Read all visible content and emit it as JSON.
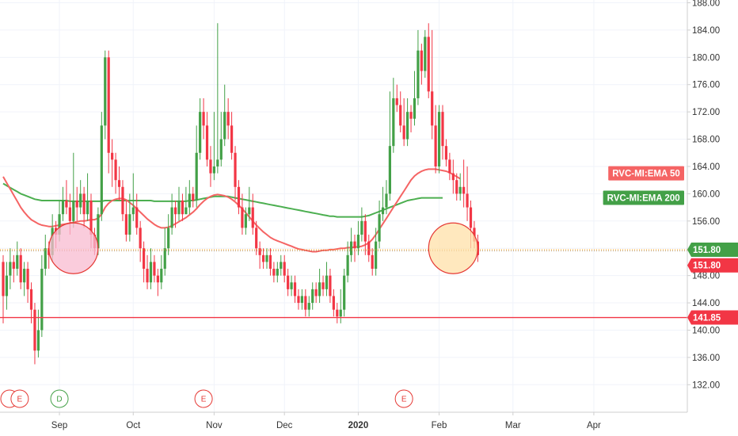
{
  "chart_data": {
    "type": "candlestick",
    "ylim": [
      130,
      188
    ],
    "y_ticks": [
      "132.00",
      "136.00",
      "140.00",
      "144.00",
      "148.00",
      "152.00",
      "156.00",
      "160.00",
      "164.00",
      "168.00",
      "172.00",
      "176.00",
      "180.00",
      "184.00",
      "188.00"
    ],
    "x_labels": [
      {
        "label": "Sep",
        "index": 16,
        "bold": false
      },
      {
        "label": "Oct",
        "index": 37,
        "bold": false
      },
      {
        "label": "Nov",
        "index": 60,
        "bold": false
      },
      {
        "label": "Dec",
        "index": 80,
        "bold": false
      },
      {
        "label": "2020",
        "index": 101,
        "bold": true
      },
      {
        "label": "Feb",
        "index": 124,
        "bold": false
      },
      {
        "label": "Mar",
        "index": 145,
        "bold": false
      },
      {
        "label": "Apr",
        "index": 168,
        "bold": false
      }
    ],
    "candles": [
      [
        150,
        145,
        151,
        141
      ],
      [
        145,
        148,
        150,
        143
      ],
      [
        148,
        150,
        152,
        146
      ],
      [
        150,
        149,
        151,
        147
      ],
      [
        149,
        151,
        153,
        148
      ],
      [
        151,
        147,
        152,
        146
      ],
      [
        147,
        149,
        150,
        145
      ],
      [
        149,
        146,
        150,
        144
      ],
      [
        146,
        143,
        147,
        141
      ],
      [
        143,
        137,
        144,
        135
      ],
      [
        137,
        140,
        143,
        136
      ],
      [
        140,
        149,
        151,
        139
      ],
      [
        149,
        152,
        154,
        148
      ],
      [
        152,
        151,
        153,
        149
      ],
      [
        151,
        155,
        157,
        150
      ],
      [
        155,
        154,
        156,
        152
      ],
      [
        154,
        157,
        159,
        153
      ],
      [
        157,
        159,
        161,
        156
      ],
      [
        159,
        158,
        162,
        157
      ],
      [
        158,
        156,
        160,
        154
      ],
      [
        156,
        159,
        166,
        155
      ],
      [
        159,
        158,
        161,
        156
      ],
      [
        158,
        160,
        162,
        157
      ],
      [
        160,
        157,
        161,
        155
      ],
      [
        157,
        159,
        163,
        156
      ],
      [
        159,
        154,
        160,
        152
      ],
      [
        154,
        152,
        155,
        151
      ],
      [
        152,
        157,
        158,
        151
      ],
      [
        157,
        170,
        172,
        156
      ],
      [
        170,
        180,
        181,
        168
      ],
      [
        180,
        166,
        181,
        163
      ],
      [
        166,
        165,
        168,
        161
      ],
      [
        165,
        162,
        166,
        160
      ],
      [
        162,
        161,
        164,
        159
      ],
      [
        161,
        157,
        162,
        156
      ],
      [
        157,
        154,
        159,
        153
      ],
      [
        154,
        157,
        160,
        153
      ],
      [
        157,
        158,
        163,
        156
      ],
      [
        158,
        155,
        160,
        154
      ],
      [
        155,
        152,
        156,
        150
      ],
      [
        152,
        149,
        153,
        147
      ],
      [
        149,
        147,
        151,
        146
      ],
      [
        147,
        150,
        152,
        146
      ],
      [
        150,
        148,
        151,
        147
      ],
      [
        148,
        147,
        149,
        145
      ],
      [
        147,
        149,
        151,
        146
      ],
      [
        149,
        152,
        155,
        148
      ],
      [
        152,
        155,
        157,
        151
      ],
      [
        155,
        158,
        160,
        154
      ],
      [
        158,
        157,
        159,
        155
      ],
      [
        157,
        159,
        161,
        156
      ],
      [
        159,
        157,
        160,
        156
      ],
      [
        157,
        158,
        161,
        157
      ],
      [
        158,
        160,
        162,
        157
      ],
      [
        160,
        159,
        161,
        158
      ],
      [
        159,
        166,
        170,
        158
      ],
      [
        166,
        172,
        174,
        165
      ],
      [
        172,
        170,
        174,
        168
      ],
      [
        170,
        165,
        172,
        164
      ],
      [
        165,
        163,
        167,
        161
      ],
      [
        163,
        164,
        172,
        162
      ],
      [
        164,
        165,
        185,
        163
      ],
      [
        165,
        168,
        172,
        164
      ],
      [
        168,
        172,
        176,
        167
      ],
      [
        172,
        170,
        174,
        168
      ],
      [
        170,
        166,
        172,
        165
      ],
      [
        166,
        161,
        167,
        159
      ],
      [
        161,
        158,
        162,
        157
      ],
      [
        158,
        155,
        160,
        154
      ],
      [
        155,
        157,
        158,
        154
      ],
      [
        157,
        158,
        161,
        156
      ],
      [
        158,
        155,
        160,
        154
      ],
      [
        155,
        152,
        156,
        151
      ],
      [
        152,
        151,
        153,
        149
      ],
      [
        151,
        150,
        152,
        149
      ],
      [
        150,
        151,
        152,
        149
      ],
      [
        151,
        149,
        152,
        148
      ],
      [
        149,
        148,
        150,
        147
      ],
      [
        148,
        149,
        150,
        147
      ],
      [
        149,
        150,
        151,
        148
      ],
      [
        150,
        148,
        151,
        147
      ],
      [
        148,
        146,
        149,
        145
      ],
      [
        146,
        147,
        148,
        145
      ],
      [
        147,
        145,
        148,
        144
      ],
      [
        145,
        144,
        146,
        143
      ],
      [
        144,
        145,
        146,
        143
      ],
      [
        145,
        143,
        146,
        142
      ],
      [
        143,
        144,
        145,
        142
      ],
      [
        144,
        146,
        147,
        143
      ],
      [
        146,
        145,
        147,
        144
      ],
      [
        145,
        147,
        149,
        144
      ],
      [
        147,
        146,
        148,
        145
      ],
      [
        146,
        148,
        150,
        145
      ],
      [
        148,
        145,
        149,
        144
      ],
      [
        145,
        143,
        146,
        142
      ],
      [
        143,
        142,
        144,
        141
      ],
      [
        142,
        143,
        146,
        141
      ],
      [
        143,
        148,
        149,
        142
      ],
      [
        148,
        151,
        153,
        147
      ],
      [
        151,
        153,
        155,
        150
      ],
      [
        153,
        152,
        154,
        150
      ],
      [
        152,
        154,
        156,
        151
      ],
      [
        154,
        156,
        158,
        153
      ],
      [
        156,
        153,
        157,
        151
      ],
      [
        153,
        151,
        154,
        150
      ],
      [
        151,
        149,
        152,
        148
      ],
      [
        149,
        153,
        155,
        148
      ],
      [
        153,
        157,
        159,
        152
      ],
      [
        157,
        158,
        161,
        156
      ],
      [
        158,
        160,
        162,
        157
      ],
      [
        160,
        167,
        175,
        159
      ],
      [
        167,
        174,
        177,
        166
      ],
      [
        174,
        173,
        176,
        172
      ],
      [
        173,
        170,
        175,
        169
      ],
      [
        170,
        168,
        174,
        167
      ],
      [
        168,
        172,
        174,
        167
      ],
      [
        172,
        171,
        173,
        169
      ],
      [
        171,
        174,
        178,
        170
      ],
      [
        174,
        181,
        184,
        173
      ],
      [
        181,
        178,
        182,
        176
      ],
      [
        178,
        183,
        184,
        177
      ],
      [
        183,
        175,
        185,
        174
      ],
      [
        175,
        170,
        184,
        168
      ],
      [
        170,
        164,
        173,
        163
      ],
      [
        164,
        172,
        173,
        163
      ],
      [
        172,
        167,
        173,
        165
      ],
      [
        167,
        165,
        168,
        164
      ],
      [
        165,
        163,
        166,
        162
      ],
      [
        163,
        162,
        165,
        160
      ],
      [
        162,
        160,
        163,
        159
      ],
      [
        160,
        161,
        163,
        159
      ],
      [
        161,
        160,
        165,
        158
      ],
      [
        160,
        158,
        164,
        156
      ],
      [
        158,
        155,
        159,
        152
      ],
      [
        155,
        153,
        156,
        152
      ],
      [
        153,
        151,
        154,
        150
      ]
    ],
    "ema50": [
      162.5,
      161.6,
      160.7,
      159.8,
      158.9,
      158.0,
      157.3,
      156.7,
      156.2,
      155.9,
      155.6,
      155.4,
      155.3,
      155.2,
      155.2,
      155.3,
      155.4,
      155.5,
      155.6,
      155.7,
      155.8,
      155.9,
      156.0,
      156.0,
      156.1,
      156.2,
      156.2,
      156.4,
      157.0,
      158.0,
      158.6,
      159.0,
      159.2,
      159.3,
      159.3,
      159.1,
      158.7,
      158.3,
      157.8,
      157.3,
      156.8,
      156.3,
      155.9,
      155.5,
      155.2,
      155.0,
      155.0,
      155.1,
      155.3,
      155.6,
      155.9,
      156.2,
      156.5,
      156.9,
      157.3,
      157.8,
      158.4,
      158.9,
      159.3,
      159.6,
      159.8,
      159.9,
      159.8,
      159.7,
      159.5,
      159.2,
      158.8,
      158.3,
      157.8,
      157.2,
      156.6,
      156.0,
      155.4,
      154.9,
      154.4,
      154.0,
      153.6,
      153.3,
      153.1,
      152.9,
      152.7,
      152.5,
      152.3,
      152.1,
      151.9,
      151.8,
      151.7,
      151.6,
      151.5,
      151.5,
      151.6,
      151.7,
      151.7,
      151.8,
      151.8,
      151.9,
      152.0,
      152.0,
      152.1,
      152.1,
      152.2,
      152.2,
      152.3,
      152.5,
      152.8,
      153.3,
      154.0,
      154.8,
      155.6,
      156.4,
      157.2,
      158.0,
      158.8,
      159.6,
      160.4,
      161.2,
      162.0,
      162.6,
      163.0,
      163.3,
      163.5,
      163.6,
      163.6,
      163.6,
      163.5,
      163.4,
      163.3,
      163.1,
      162.8,
      162.5,
      162.2
    ],
    "ema200": [
      161.5,
      161.2,
      160.9,
      160.6,
      160.3,
      160.0,
      159.8,
      159.6,
      159.4,
      159.2,
      159.1,
      159.0,
      159.0,
      159.0,
      159.0,
      159.0,
      159.0,
      159.0,
      159.0,
      158.9,
      158.9,
      158.9,
      158.9,
      158.9,
      158.9,
      158.9,
      158.9,
      158.9,
      158.9,
      159.0,
      159.0,
      159.0,
      159.0,
      159.0,
      159.0,
      159.0,
      159.0,
      159.0,
      159.0,
      159.0,
      159.0,
      159.0,
      159.0,
      158.9,
      158.9,
      158.9,
      158.9,
      158.9,
      158.9,
      158.9,
      158.9,
      158.9,
      158.9,
      159.0,
      159.0,
      159.1,
      159.2,
      159.3,
      159.4,
      159.5,
      159.6,
      159.6,
      159.6,
      159.6,
      159.6,
      159.5,
      159.4,
      159.3,
      159.2,
      159.1,
      159.0,
      158.9,
      158.8,
      158.7,
      158.6,
      158.5,
      158.4,
      158.3,
      158.2,
      158.1,
      158.0,
      157.9,
      157.8,
      157.7,
      157.6,
      157.5,
      157.4,
      157.3,
      157.2,
      157.1,
      157.0,
      156.9,
      156.8,
      156.7,
      156.7,
      156.6,
      156.6,
      156.6,
      156.6,
      156.6,
      156.6,
      156.6,
      156.6,
      156.7,
      156.8,
      157.0,
      157.2,
      157.4,
      157.6,
      157.8,
      158.0,
      158.2,
      158.4,
      158.6,
      158.8,
      159.0,
      159.1,
      159.2,
      159.3,
      159.4,
      159.4,
      159.4,
      159.4,
      159.4,
      159.4,
      159.4
    ],
    "price_line": {
      "value": 151.8,
      "label": "151.80",
      "color": "#ff9800"
    },
    "support_line": {
      "value": 141.85,
      "label": "141.85",
      "color": "#f23645"
    },
    "price_tags": [
      {
        "value": 151.8,
        "label": "151.80",
        "color": "#43a047"
      },
      {
        "value": 149.5,
        "label": "151.80",
        "color": "#f23645"
      },
      {
        "value": 141.85,
        "label": "141.85",
        "color": "#f23645"
      }
    ],
    "legend_tags": [
      {
        "label": "RVC-MI:EMA 50",
        "color": "#f56464",
        "value": 163.0
      },
      {
        "label": "RVC-MI:EMA 200",
        "color": "#43a047",
        "value": 159.4
      }
    ],
    "highlight_circles": [
      {
        "index": 20,
        "value": 152.0,
        "color": "#f8bbd0",
        "stroke": "#e53935"
      },
      {
        "index": 128,
        "value": 152.0,
        "color": "#ffe0a8",
        "stroke": "#e53935"
      }
    ],
    "events": [
      {
        "label": "E",
        "index": 2,
        "color": "#e53935"
      },
      {
        "label": "D",
        "index": 16,
        "color": "#43a047"
      },
      {
        "label": "E",
        "index": 57,
        "color": "#e53935"
      },
      {
        "label": "E",
        "index": 114,
        "color": "#e53935"
      }
    ],
    "colors": {
      "up": "#43a047",
      "down": "#f23645",
      "ema50": "#f56464",
      "ema200": "#4caf50"
    }
  }
}
